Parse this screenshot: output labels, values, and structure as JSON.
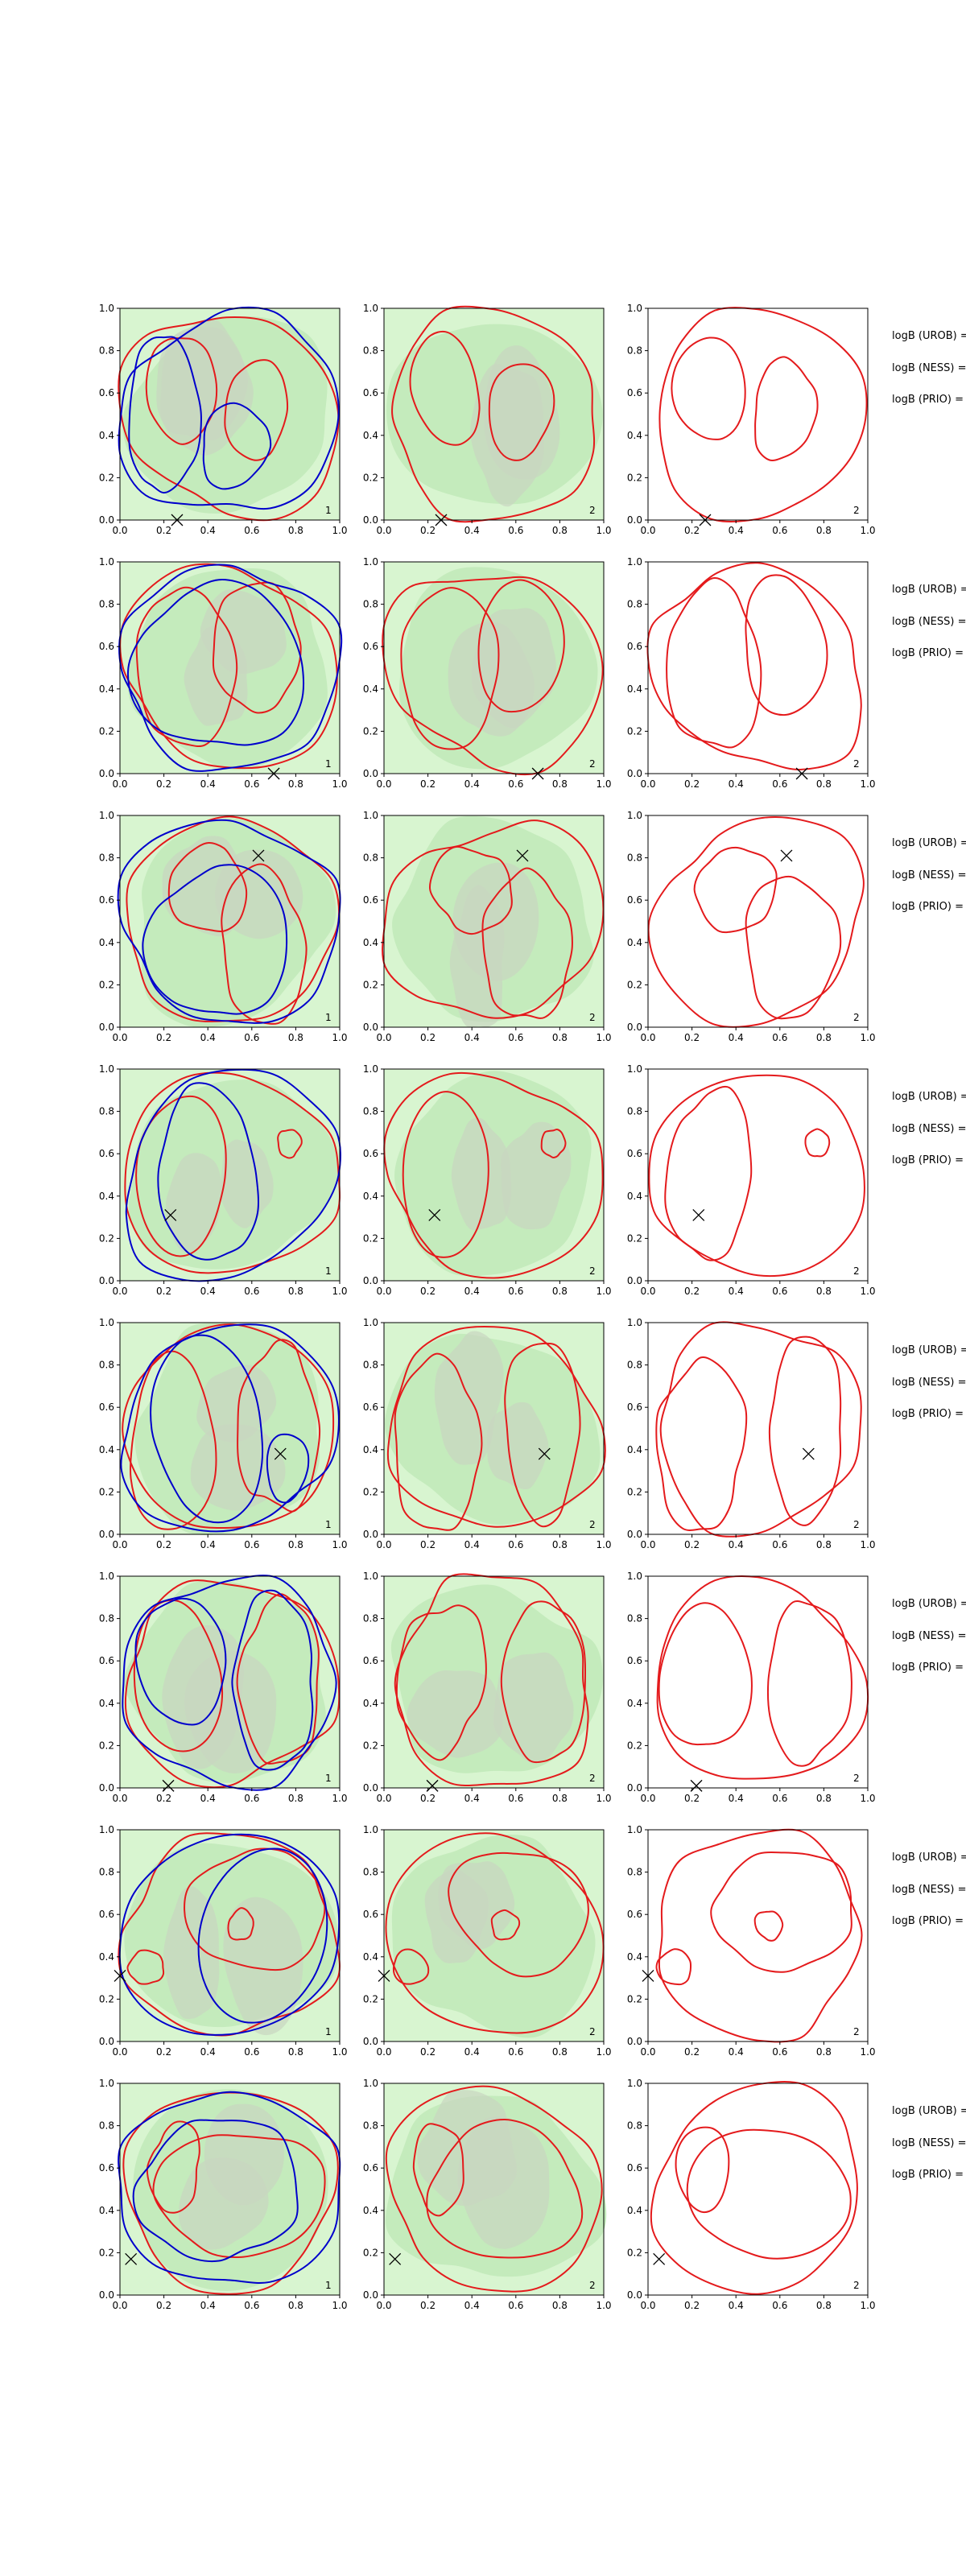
{
  "figure": {
    "row_labels": [
      "logB (UROB) =",
      "logB (NESS) =",
      "logB (PRIO) ="
    ]
  },
  "colors": {
    "fill_light": "#d8f5d0",
    "fill_mid": "#c4ebbc",
    "fill_gray": "#c9d6c0",
    "contour_red": "#e41a1c",
    "contour_blue": "#0000cc",
    "axis": "#000000"
  },
  "chart_data": {
    "type": "contour",
    "grid": "8 rows x 3 columns",
    "xlim": [
      0.0,
      1.0
    ],
    "ylim": [
      0.0,
      1.0
    ],
    "ticks": [
      "0.0",
      "0.2",
      "0.4",
      "0.6",
      "0.8",
      "1.0"
    ],
    "panel_labels": [
      "1",
      "2",
      "2"
    ],
    "series": [
      {
        "color": "red",
        "panels": "all"
      },
      {
        "color": "blue",
        "panels": "column 1"
      }
    ],
    "markers": [
      {
        "row": 1,
        "x": 0.26,
        "y": 0.0
      },
      {
        "row": 2,
        "x": 0.7,
        "y": 0.0
      },
      {
        "row": 3,
        "x": 0.63,
        "y": 0.81
      },
      {
        "row": 4,
        "x": 0.23,
        "y": 0.31
      },
      {
        "row": 5,
        "x": 0.73,
        "y": 0.38
      },
      {
        "row": 6,
        "x": 0.22,
        "y": 0.01
      },
      {
        "row": 7,
        "x": 0.0,
        "y": 0.31
      },
      {
        "row": 8,
        "x": 0.05,
        "y": 0.17
      }
    ]
  }
}
